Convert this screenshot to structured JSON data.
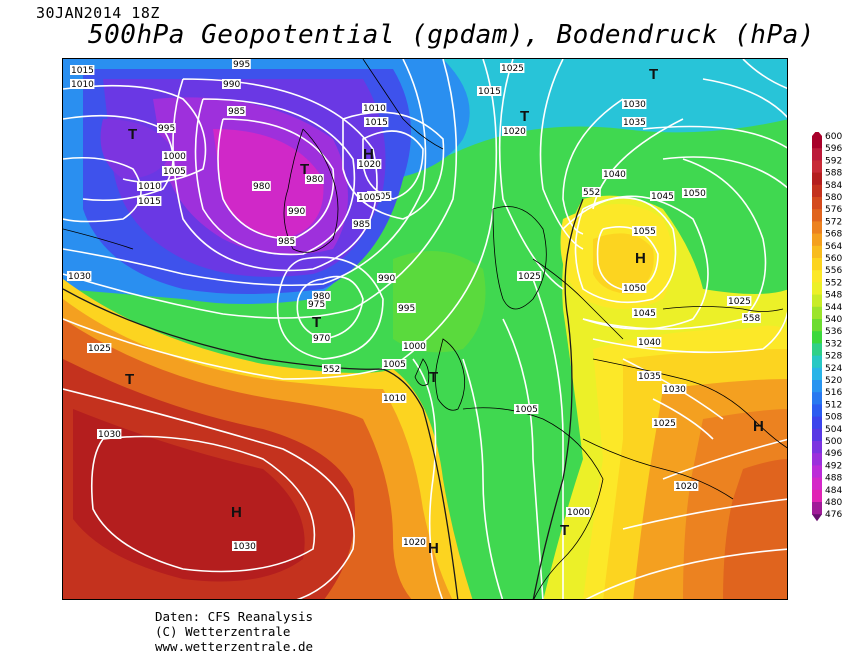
{
  "header": {
    "date": "30JAN2014 18Z",
    "title": "500hPa Geopotential (gpdam), Bodendruck (hPa)"
  },
  "footer": {
    "line1": "Daten: CFS Reanalysis",
    "line2": "(C) Wetterzentrale",
    "line3": "www.wetterzentrale.de"
  },
  "legend": {
    "values": [
      "600",
      "596",
      "592",
      "588",
      "584",
      "580",
      "576",
      "572",
      "568",
      "564",
      "560",
      "556",
      "552",
      "548",
      "544",
      "540",
      "536",
      "532",
      "528",
      "524",
      "520",
      "516",
      "512",
      "508",
      "504",
      "500",
      "496",
      "492",
      "488",
      "484",
      "480",
      "476"
    ],
    "colors": [
      "#a8002a",
      "#bc1a3a",
      "#c82a36",
      "#b41e1e",
      "#c4321e",
      "#d44a1e",
      "#e0641e",
      "#ec8220",
      "#f4a020",
      "#f8bc20",
      "#fcd420",
      "#fce828",
      "#ecf028",
      "#c8ec28",
      "#9ce42c",
      "#6cdc30",
      "#3cd83c",
      "#30d088",
      "#28c8c4",
      "#28b4e8",
      "#2894f0",
      "#2878f0",
      "#2c5cf0",
      "#3c44ec",
      "#5838e4",
      "#7c34e0",
      "#9c30dc",
      "#bc2cd8",
      "#d428c8",
      "#e024b4",
      "#a01c98",
      "#681070"
    ]
  },
  "map": {
    "lows": [
      {
        "label": "T"
      },
      {
        "label": "T"
      },
      {
        "label": "T"
      },
      {
        "label": "T"
      },
      {
        "label": "T"
      },
      {
        "label": "T"
      },
      {
        "label": "T"
      },
      {
        "label": "T"
      }
    ],
    "highs": [
      {
        "label": "H"
      },
      {
        "label": "H"
      },
      {
        "label": "H"
      },
      {
        "label": "H"
      },
      {
        "label": "H"
      }
    ],
    "isobar_labels": [
      "995",
      "1015",
      "1010",
      "990",
      "985",
      "995",
      "1000",
      "1005",
      "1010",
      "1015",
      "1010",
      "1015",
      "1020",
      "1005",
      "980",
      "990",
      "985",
      "980",
      "985",
      "980",
      "975",
      "970",
      "1030",
      "1025",
      "1015",
      "1020",
      "1030",
      "1035",
      "1040",
      "1045",
      "1050",
      "1055",
      "1050",
      "1045",
      "1040",
      "1035",
      "1030",
      "1025",
      "1025",
      "1025",
      "1000",
      "1005",
      "1010",
      "1005",
      "1000",
      "1030",
      "1030",
      "1020",
      "1020",
      "1025",
      "552",
      "552",
      "558",
      "995",
      "990",
      "985",
      "1005"
    ]
  }
}
